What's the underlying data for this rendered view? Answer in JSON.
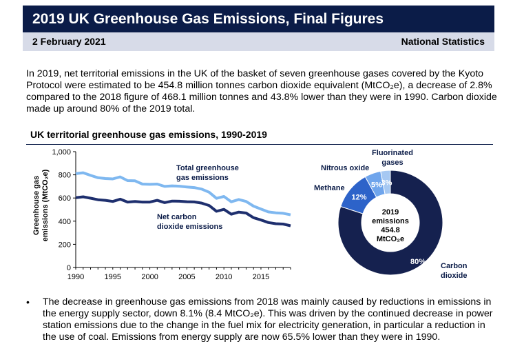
{
  "header": {
    "title": "2019 UK Greenhouse Gas Emissions, Final Figures",
    "date": "2 February 2021",
    "badge": "National Statistics"
  },
  "intro": "In 2019, net territorial emissions in the UK of the basket of seven greenhouse gases covered by the Kyoto Protocol were estimated to be 454.8 million tonnes carbon dioxide equivalent (MtCO₂e), a decrease of 2.8% compared to the 2018 figure of 468.1 million tonnes and 43.8% lower than they were in 1990. Carbon dioxide made up around 80% of the 2019 total.",
  "figure_title": "UK territorial greenhouse gas emissions, 1990-2019",
  "chart_data": [
    {
      "type": "line",
      "ylabel": "Greenhouse gas emissions (MtCO₂e)",
      "xlim": [
        1990,
        2019
      ],
      "ylim": [
        0,
        1000
      ],
      "yticks": [
        "0",
        "200",
        "400",
        "600",
        "800",
        "1,000"
      ],
      "xticks": [
        "1990",
        "1995",
        "2000",
        "2005",
        "2010",
        "2015"
      ],
      "x": [
        1990,
        1991,
        1992,
        1993,
        1994,
        1995,
        1996,
        1997,
        1998,
        1999,
        2000,
        2001,
        2002,
        2003,
        2004,
        2005,
        2006,
        2007,
        2008,
        2009,
        2010,
        2011,
        2012,
        2013,
        2014,
        2015,
        2016,
        2017,
        2018,
        2019
      ],
      "series": [
        {
          "name": "Total greenhouse gas emissions",
          "color": "#7fb8f0",
          "values": [
            810,
            818,
            795,
            775,
            768,
            765,
            782,
            750,
            748,
            720,
            718,
            720,
            700,
            705,
            702,
            695,
            690,
            677,
            650,
            597,
            613,
            567,
            587,
            570,
            530,
            505,
            480,
            472,
            468,
            455
          ]
        },
        {
          "name": "Net carbon dioxide emissions",
          "color": "#1e2f6e",
          "values": [
            603,
            610,
            598,
            585,
            580,
            570,
            590,
            565,
            570,
            565,
            565,
            580,
            560,
            573,
            572,
            568,
            566,
            556,
            535,
            485,
            502,
            460,
            478,
            470,
            430,
            410,
            388,
            378,
            375,
            360
          ]
        }
      ]
    },
    {
      "type": "pie",
      "title": "2019 emissions 454.8 MtCO₂e",
      "center_lines": [
        "2019",
        "emissions",
        "454.8",
        "MtCO₂e"
      ],
      "slices": [
        {
          "name": "Carbon dioxide",
          "value": 80,
          "label": "80%",
          "color": "#15214f"
        },
        {
          "name": "Methane",
          "value": 12,
          "label": "12%",
          "color": "#2d63c9"
        },
        {
          "name": "Nitrous oxide",
          "value": 5,
          "label": "5%",
          "color": "#6fa5ec"
        },
        {
          "name": "Fluorinated gases",
          "value": 3,
          "label": "3%",
          "color": "#a6c8f2"
        }
      ]
    }
  ],
  "labels": {
    "total_line": [
      "Total greenhouse",
      "gas emissions"
    ],
    "net_line": [
      "Net carbon",
      "dioxide emissions"
    ],
    "ylabel_lines": [
      "Greenhouse gas",
      "emissions (MtCO₂e)"
    ],
    "fluorinated": [
      "Fluorinated",
      "gases"
    ],
    "nitrous": "Nitrous oxide",
    "methane": "Methane",
    "carbon": [
      "Carbon",
      "dioxide"
    ]
  },
  "bullet": "The decrease in greenhouse gas emissions from 2018 was mainly caused by reductions in emissions in the energy supply sector, down 8.1% (8.4 MtCO₂e). This was driven by the continued decrease in power station emissions due to the change in the fuel mix for electricity generation, in particular a reduction in the use of coal. Emissions from energy supply are now 65.5% lower than they were in 1990."
}
